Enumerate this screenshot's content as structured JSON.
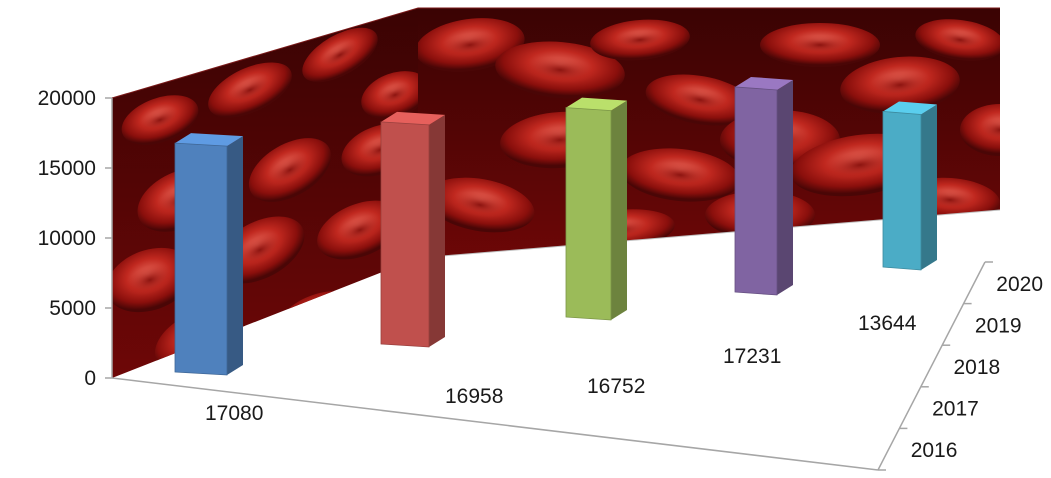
{
  "chart_data": {
    "type": "bar",
    "style": "3d-column",
    "categories": [
      "2016",
      "2017",
      "2018",
      "2019",
      "2020"
    ],
    "values": [
      17080,
      16958,
      16752,
      17231,
      13644
    ],
    "data_labels": [
      "17080",
      "16958",
      "16752",
      "17231",
      "13644"
    ],
    "y_ticks": [
      "0",
      "5000",
      "10000",
      "15000",
      "20000"
    ],
    "ylim": [
      0,
      20000
    ],
    "title": "",
    "xlabel": "",
    "ylabel": "",
    "legend": "none",
    "background": "red blood cells photo on back and side walls",
    "colors": [
      "#4f81bd",
      "#c0504d",
      "#9bbb59",
      "#8064a2",
      "#4bacc6"
    ]
  }
}
